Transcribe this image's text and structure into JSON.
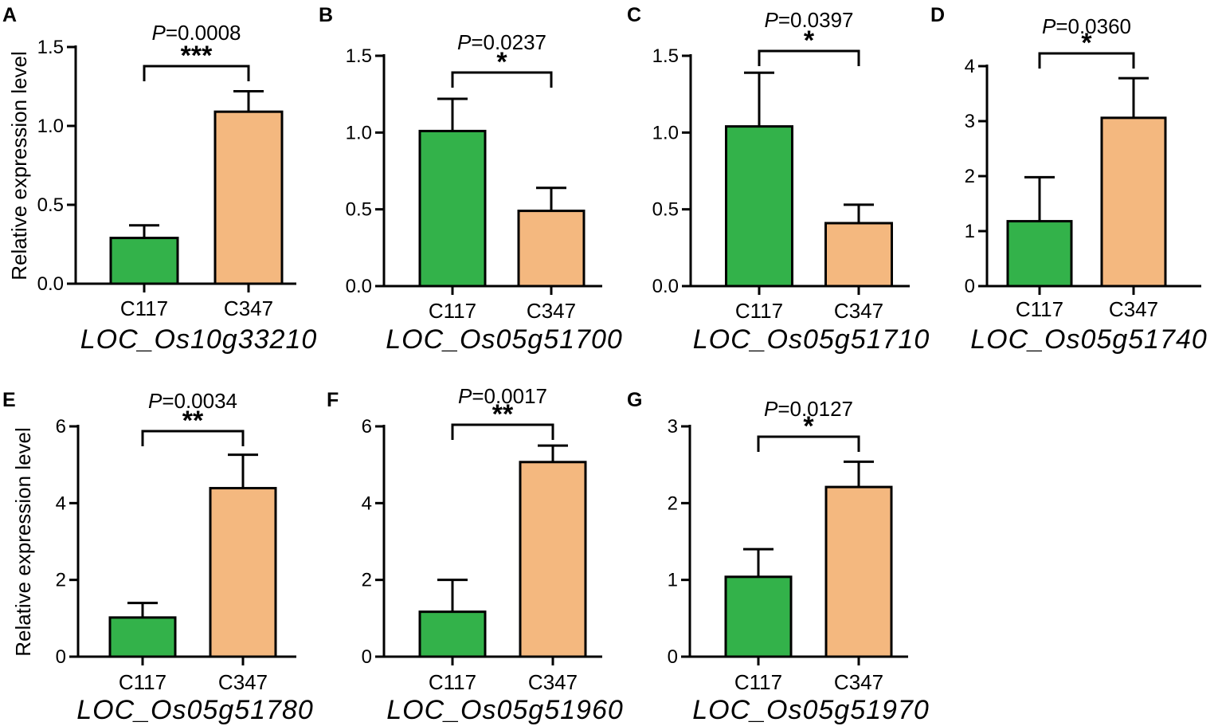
{
  "colors": {
    "c117": "#33b24a",
    "c347": "#f4b87f"
  },
  "ylabel": "Relative expression level",
  "chart_data": [
    {
      "panel": "A",
      "type": "bar",
      "gene": "LOC_Os10g33210",
      "categories": [
        "C117",
        "C347"
      ],
      "values": [
        0.29,
        1.09
      ],
      "errors": [
        0.08,
        0.13
      ],
      "ylim": [
        0,
        1.5
      ],
      "ticks": [
        0,
        0.5,
        1.0,
        1.5
      ],
      "tick_labels": [
        "0.0",
        "0.5",
        "1.0",
        "1.5"
      ],
      "p_prefix": "P",
      "p_value": "=0.0008",
      "stars": "***",
      "show_ylabel": true
    },
    {
      "panel": "B",
      "type": "bar",
      "gene": "LOC_Os05g51700",
      "categories": [
        "C117",
        "C347"
      ],
      "values": [
        1.01,
        0.49
      ],
      "errors": [
        0.21,
        0.15
      ],
      "ylim": [
        0,
        1.5
      ],
      "ticks": [
        0,
        0.5,
        1.0,
        1.5
      ],
      "tick_labels": [
        "0.0",
        "0.5",
        "1.0",
        "1.5"
      ],
      "p_prefix": "P",
      "p_value": "=0.0237",
      "stars": "*",
      "show_ylabel": false
    },
    {
      "panel": "C",
      "type": "bar",
      "gene": "LOC_Os05g51710",
      "categories": [
        "C117",
        "C347"
      ],
      "values": [
        1.04,
        0.41
      ],
      "errors": [
        0.35,
        0.12
      ],
      "ylim": [
        0,
        1.5
      ],
      "ticks": [
        0,
        0.5,
        1.0,
        1.5
      ],
      "tick_labels": [
        "0.0",
        "0.5",
        "1.0",
        "1.5"
      ],
      "p_prefix": "P",
      "p_value": "=0.0397",
      "stars": "*",
      "show_ylabel": false
    },
    {
      "panel": "D",
      "type": "bar",
      "gene": "LOC_Os05g51740",
      "categories": [
        "C117",
        "C347"
      ],
      "values": [
        1.18,
        3.06
      ],
      "errors": [
        0.8,
        0.72
      ],
      "ylim": [
        0,
        4
      ],
      "ticks": [
        0,
        1,
        2,
        3,
        4
      ],
      "tick_labels": [
        "0",
        "1",
        "2",
        "3",
        "4"
      ],
      "p_prefix": "P",
      "p_value": "=0.0360",
      "stars": "*",
      "show_ylabel": false
    },
    {
      "panel": "E",
      "type": "bar",
      "gene": "LOC_Os05g51780",
      "categories": [
        "C117",
        "C347"
      ],
      "values": [
        1.02,
        4.39
      ],
      "errors": [
        0.38,
        0.87
      ],
      "ylim": [
        0,
        6
      ],
      "ticks": [
        0,
        2,
        4,
        6
      ],
      "tick_labels": [
        "0",
        "2",
        "4",
        "6"
      ],
      "p_prefix": "P",
      "p_value": "=0.0034",
      "stars": "**",
      "show_ylabel": true
    },
    {
      "panel": "F",
      "type": "bar",
      "gene": "LOC_Os05g51960",
      "categories": [
        "C117",
        "C347"
      ],
      "values": [
        1.17,
        5.07
      ],
      "errors": [
        0.83,
        0.43
      ],
      "ylim": [
        0,
        6
      ],
      "ticks": [
        0,
        2,
        4,
        6
      ],
      "tick_labels": [
        "0",
        "2",
        "4",
        "6"
      ],
      "p_prefix": "P",
      "p_value": "=0.0017",
      "stars": "**",
      "show_ylabel": false
    },
    {
      "panel": "G",
      "type": "bar",
      "gene": "LOC_Os05g51970",
      "categories": [
        "C117",
        "C347"
      ],
      "values": [
        1.04,
        2.21
      ],
      "errors": [
        0.36,
        0.33
      ],
      "ylim": [
        0,
        3
      ],
      "ticks": [
        0,
        1,
        2,
        3
      ],
      "tick_labels": [
        "0",
        "1",
        "2",
        "3"
      ],
      "p_prefix": "P",
      "p_value": "=0.0127",
      "stars": "*",
      "show_ylabel": false
    }
  ]
}
